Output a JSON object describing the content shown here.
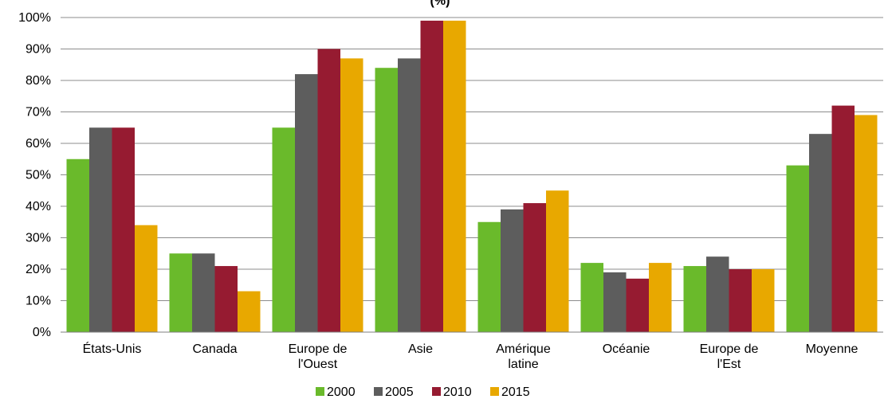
{
  "chart_data": {
    "type": "bar",
    "title": "(%)",
    "categories": [
      [
        "États-Unis"
      ],
      [
        "Canada"
      ],
      [
        "Europe de",
        "l'Ouest"
      ],
      [
        "Asie"
      ],
      [
        "Amérique",
        "latine"
      ],
      [
        "Océanie"
      ],
      [
        "Europe de",
        "l'Est"
      ],
      [
        "Moyenne"
      ]
    ],
    "series": [
      {
        "name": "2000",
        "color": "#6aba2b",
        "values": [
          55,
          25,
          65,
          84,
          35,
          22,
          21,
          53
        ]
      },
      {
        "name": "2005",
        "color": "#5d5d5d",
        "values": [
          65,
          25,
          82,
          87,
          39,
          19,
          24,
          63
        ]
      },
      {
        "name": "2010",
        "color": "#961b31",
        "values": [
          65,
          21,
          90,
          99,
          41,
          17,
          20,
          72
        ]
      },
      {
        "name": "2015",
        "color": "#e8a800",
        "values": [
          34,
          13,
          87,
          99,
          45,
          22,
          20,
          69
        ]
      }
    ],
    "ylim": [
      0,
      100
    ],
    "yticks": [
      "0%",
      "10%",
      "20%",
      "30%",
      "40%",
      "50%",
      "60%",
      "70%",
      "80%",
      "90%",
      "100%"
    ],
    "grid": true,
    "legend_position": "bottom"
  }
}
